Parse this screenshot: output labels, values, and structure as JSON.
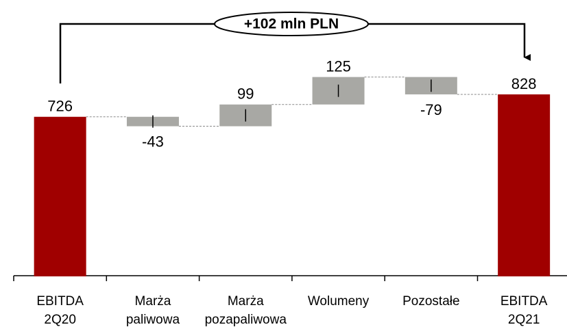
{
  "chart_data": {
    "type": "waterfall",
    "annotation": "+102 mln PLN",
    "categories": [
      [
        "EBITDA",
        "2Q20"
      ],
      [
        "Marża",
        "paliwowa"
      ],
      [
        "Marża",
        "pozapaliwowa"
      ],
      [
        "Wolumeny"
      ],
      [
        "Pozostałe"
      ],
      [
        "EBITDA",
        "2Q21"
      ]
    ],
    "values": [
      726,
      -43,
      99,
      125,
      -79,
      828
    ],
    "totals": [
      true,
      false,
      false,
      false,
      false,
      true
    ],
    "color": "#a8a8a4",
    "total_color": "#a00000"
  }
}
